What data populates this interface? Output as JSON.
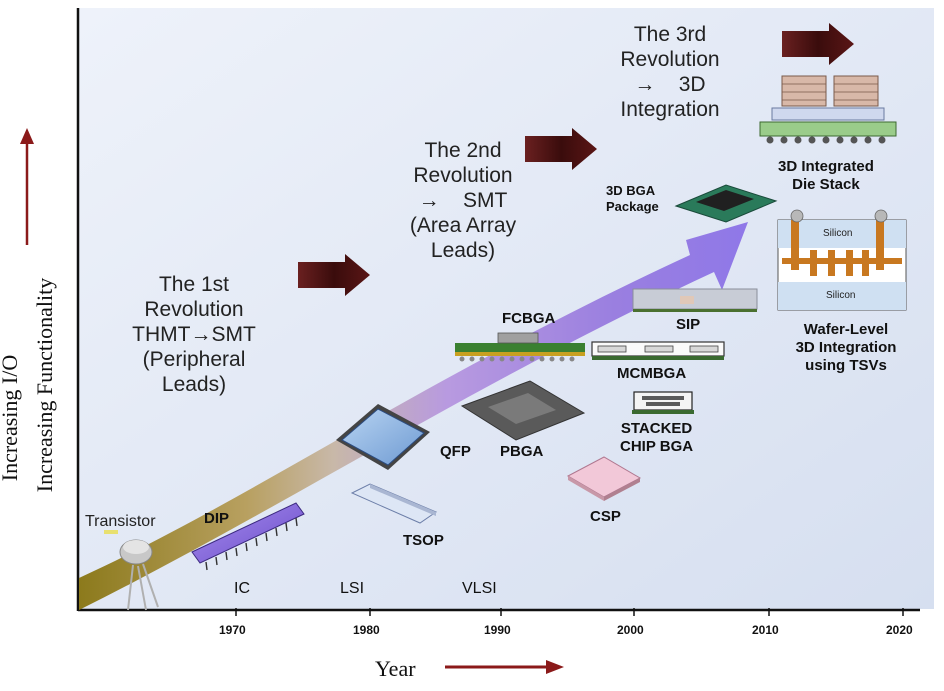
{
  "y_axis": {
    "label_line1": "Increasing I/O",
    "label_line2": "Increasing Functionality"
  },
  "x_axis": {
    "label": "Year",
    "ticks": [
      "1970",
      "1980",
      "1990",
      "2000",
      "2010",
      "2020"
    ]
  },
  "eras": [
    "IC",
    "LSI",
    "VLSI"
  ],
  "revolutions": {
    "first": [
      "The 1st",
      "Revolution",
      "THMT→SMT",
      "(Peripheral",
      "Leads)"
    ],
    "second": [
      "The 2nd",
      "Revolution",
      "→    SMT",
      "(Area Array",
      "Leads)"
    ],
    "third": [
      "The 3rd",
      "Revolution",
      "→    3D",
      "Integration"
    ]
  },
  "packages": {
    "transistor": "Transistor",
    "dip": "DIP",
    "qfp": "QFP",
    "tsop": "TSOP",
    "pbga": "PBGA",
    "fcbga": "FCBGA",
    "csp": "CSP",
    "mcmbga": "MCMBGA",
    "stacked_line1": "STACKED",
    "stacked_line2": "CHIP BGA",
    "sip": "SIP",
    "bga3d_line1": "3D BGA",
    "bga3d_line2": "Package",
    "diestack_line1": "3D Integrated",
    "diestack_line2": "Die Stack",
    "wafer_line1": "Wafer-Level",
    "wafer_line2": "3D Integration",
    "wafer_line3": "using TSVs",
    "silicon_top": "Silicon",
    "silicon_bottom": "Silicon"
  },
  "colors": {
    "panel_bg": "#dfe6f4",
    "arrow_dark": "#4a1010",
    "arrow_red": "#8b1a1a",
    "band_start": "#8c7a1c",
    "band_end": "#9a7fe0"
  }
}
